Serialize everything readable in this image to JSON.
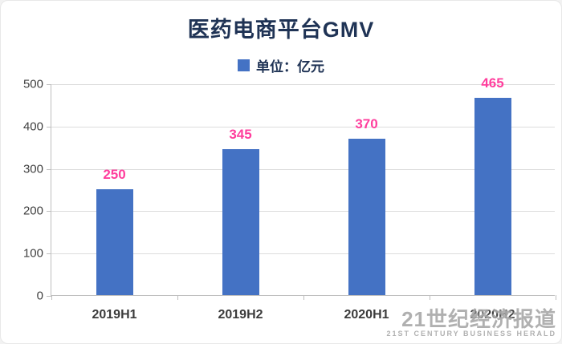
{
  "title": "医药电商平台GMV",
  "legend": {
    "label": "单位：亿元"
  },
  "chart_data": {
    "type": "bar",
    "title": "医药电商平台GMV",
    "categories": [
      "2019H1",
      "2019H2",
      "2020H1",
      "2020H2"
    ],
    "values": [
      250,
      345,
      370,
      465
    ],
    "xlabel": "",
    "ylabel": "",
    "ylim": [
      0,
      500
    ],
    "yticks": [
      0,
      100,
      200,
      300,
      400,
      500
    ],
    "grid": true,
    "legend_position": "top",
    "legend_entries": [
      "单位：亿元"
    ]
  },
  "colors": {
    "bar": "#4472c4",
    "data_label": "#ff3e9d",
    "title_text": "#1f3355",
    "axis_text": "#404040",
    "gridline": "#dcdcdc"
  },
  "watermark": {
    "line1": "21世纪经济报道",
    "line2": "21ST CENTURY BUSINESS HERALD"
  }
}
